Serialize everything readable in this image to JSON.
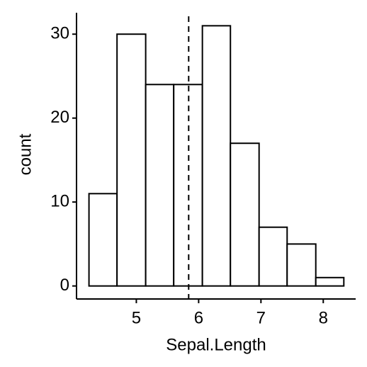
{
  "chart_data": {
    "type": "histogram",
    "bins": [
      4.24,
      4.69,
      5.15,
      5.6,
      6.06,
      6.51,
      6.97,
      7.42,
      7.88,
      8.33
    ],
    "values": [
      11,
      30,
      24,
      24,
      31,
      17,
      7,
      5,
      1
    ],
    "color": "#ffffff",
    "xlabel": "Sepal.Length",
    "ylabel": "count",
    "xlim": [
      4.04,
      8.52
    ],
    "xticks": [
      5,
      6,
      7,
      8
    ],
    "ylim": [
      -1.55,
      32.55
    ],
    "yticks": [
      0,
      10,
      20,
      30
    ],
    "vline": 5.84
  }
}
